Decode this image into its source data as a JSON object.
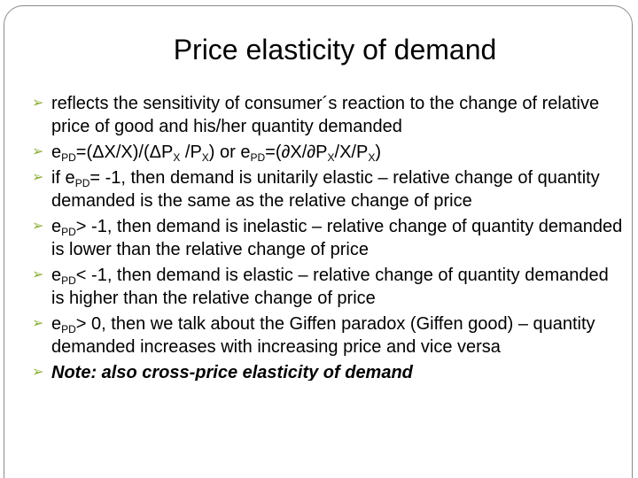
{
  "slide": {
    "title": "Price elasticity of demand",
    "bullet_marker": "➢",
    "bullets": [
      "reflects the sensitivity of consumer´s reaction to the change of relative price of good and his/her quantity demanded",
      {
        "e": "e",
        "pd_sub": "PD",
        "part1": "=(ΔX/X)/(ΔP",
        "x_sub": "X",
        "part2": " /P",
        "x_sub2": "X",
        "part3": ") or e",
        "pd_sub2": "PD",
        "part4": "=(∂X/∂P",
        "x_sub3": "X",
        "part5": "/X/P",
        "x_sub4": "X",
        "part6": ")"
      },
      {
        "lead": "if e",
        "pd_sub": "PD",
        "rest": "= -1, then demand is unitarily elastic – relative change of quantity demanded is the same as the relative change of price"
      },
      {
        "lead": "e",
        "pd_sub": "PD",
        "rest": "> -1, then demand is inelastic – relative change of quantity demanded is lower than the relative change of price"
      },
      {
        "lead": "e",
        "pd_sub": "PD",
        "rest": "< -1, then demand is elastic – relative change of quantity demanded is higher than the relative change of price"
      },
      {
        "lead": "e",
        "pd_sub": "PD",
        "rest": "> 0, then we talk about the Giffen paradox (Giffen good) – quantity demanded increases with increasing price and vice versa"
      },
      "Note: also cross-price elasticity of demand"
    ]
  }
}
